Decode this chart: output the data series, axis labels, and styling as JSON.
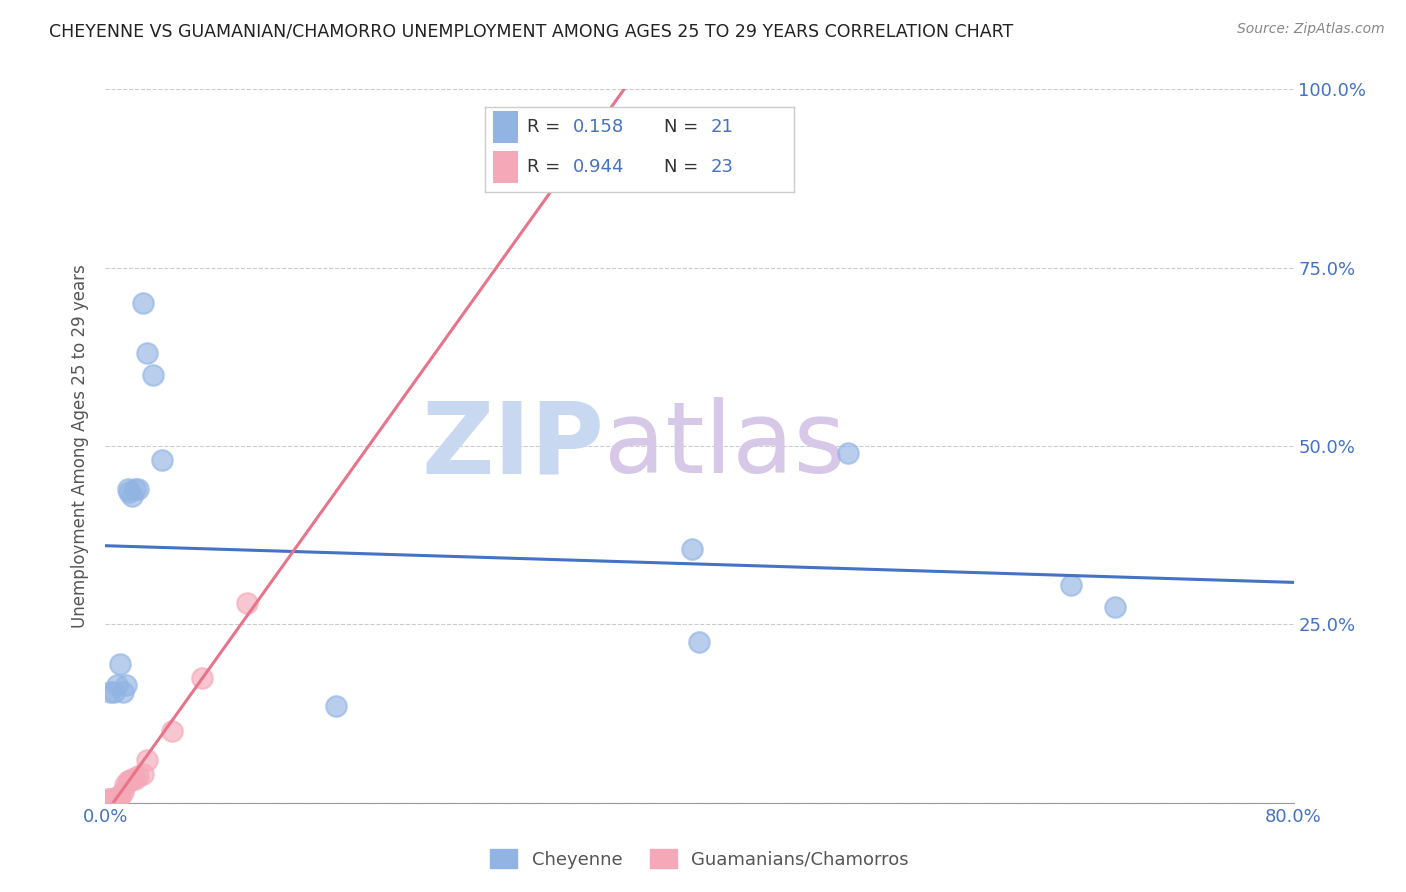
{
  "title": "CHEYENNE VS GUAMANIAN/CHAMORRO UNEMPLOYMENT AMONG AGES 25 TO 29 YEARS CORRELATION CHART",
  "source": "Source: ZipAtlas.com",
  "ylabel": "Unemployment Among Ages 25 to 29 years",
  "xlim": [
    0.0,
    0.8
  ],
  "ylim": [
    0.0,
    1.0
  ],
  "xticks": [
    0.0,
    0.8
  ],
  "yticks": [
    0.0,
    0.25,
    0.5,
    0.75,
    1.0
  ],
  "xtick_labels": [
    "0.0%",
    "80.0%"
  ],
  "ytick_labels_left": [
    "",
    "",
    "",
    "",
    ""
  ],
  "ytick_labels_right": [
    "",
    "25.0%",
    "50.0%",
    "75.0%",
    "100.0%"
  ],
  "cheyenne_x": [
    0.003,
    0.006,
    0.008,
    0.01,
    0.012,
    0.014,
    0.015,
    0.016,
    0.018,
    0.02,
    0.022,
    0.025,
    0.028,
    0.032,
    0.038,
    0.155,
    0.395,
    0.4,
    0.5,
    0.65,
    0.68
  ],
  "cheyenne_y": [
    0.155,
    0.155,
    0.165,
    0.195,
    0.155,
    0.165,
    0.44,
    0.435,
    0.43,
    0.44,
    0.44,
    0.7,
    0.63,
    0.6,
    0.48,
    0.135,
    0.355,
    0.225,
    0.49,
    0.305,
    0.275
  ],
  "chamorro_x": [
    0.0,
    0.001,
    0.002,
    0.003,
    0.004,
    0.005,
    0.006,
    0.007,
    0.008,
    0.009,
    0.01,
    0.012,
    0.013,
    0.015,
    0.016,
    0.018,
    0.02,
    0.022,
    0.025,
    0.028,
    0.045,
    0.065,
    0.095
  ],
  "chamorro_y": [
    0.0,
    0.0,
    0.005,
    0.005,
    0.005,
    0.0,
    0.0,
    0.0,
    0.008,
    0.008,
    0.01,
    0.015,
    0.025,
    0.03,
    0.03,
    0.033,
    0.033,
    0.038,
    0.04,
    0.06,
    0.1,
    0.175,
    0.28
  ],
  "cheyenne_R": 0.158,
  "cheyenne_N": 21,
  "chamorro_R": 0.944,
  "chamorro_N": 23,
  "cheyenne_color": "#92b4e3",
  "chamorro_color": "#f4a8b8",
  "cheyenne_line_color": "#4472c4",
  "chamorro_line_color": "#e8748a",
  "background_color": "#ffffff",
  "grid_color": "#cccccc",
  "title_color": "#222222",
  "source_color": "#888888",
  "axis_label_color": "#555555",
  "tick_color": "#4472c4",
  "watermark_zip_color": "#c8d8f0",
  "watermark_atlas_color": "#d8c8e8",
  "legend_border_color": "#cccccc"
}
